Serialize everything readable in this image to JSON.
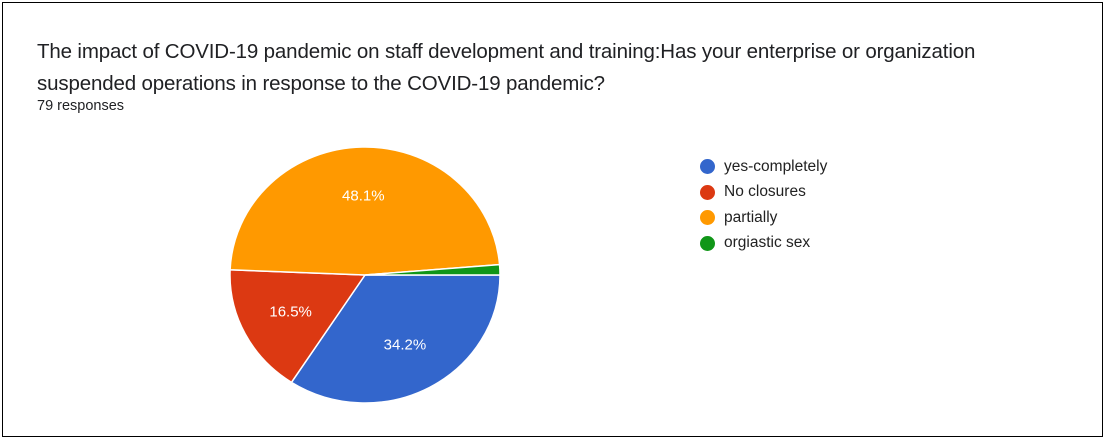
{
  "chart_data": {
    "type": "pie",
    "title": "The impact of COVID-19 pandemic on staff development and training:Has your enterprise or organization suspended operations in response to the COVID-19 pandemic?",
    "subtitle": "79 responses",
    "legend_position": "right",
    "slices": [
      {
        "label": "yes-completely",
        "value": 34.2,
        "display": "34.2%",
        "color": "#3366cc"
      },
      {
        "label": "No closures",
        "value": 16.5,
        "display": "16.5%",
        "color": "#dc3912"
      },
      {
        "label": "partially",
        "value": 48.1,
        "display": "48.1%",
        "color": "#ff9900"
      },
      {
        "label": "orgiastic sex",
        "value": 1.3,
        "display": "",
        "color": "#109618"
      }
    ]
  }
}
